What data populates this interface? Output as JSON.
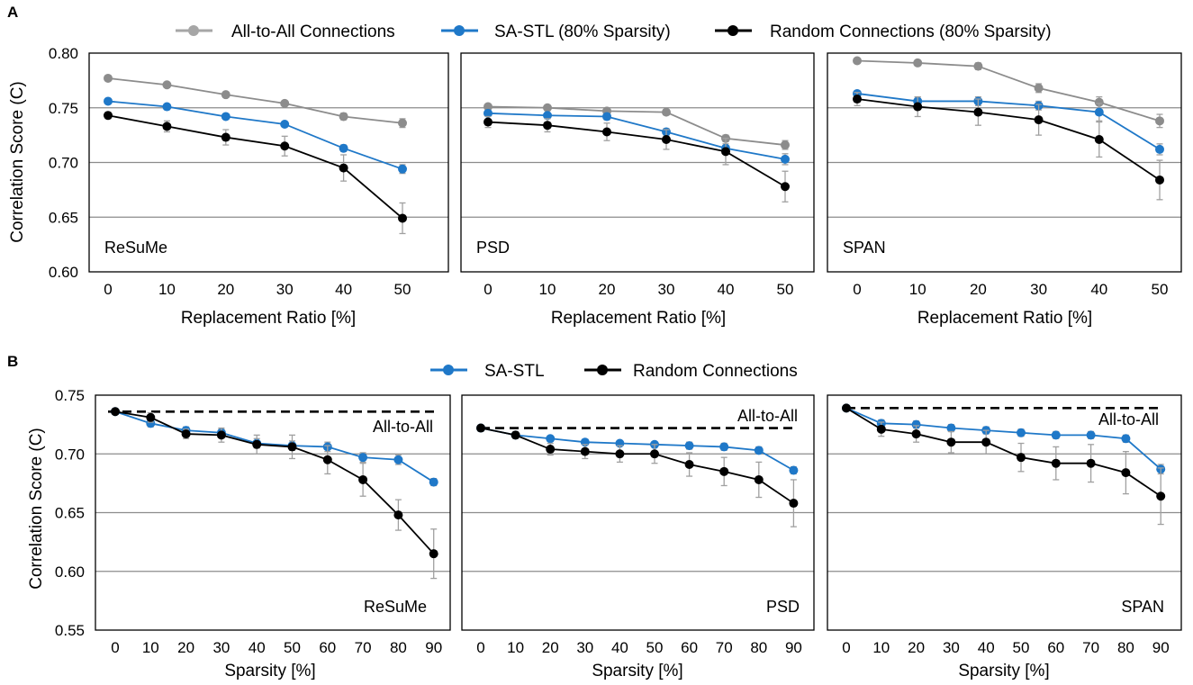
{
  "colors": {
    "all_to_all": "#8c8c8c",
    "all_to_all_legend": "#a6a6a6",
    "sa_stl": "#1f78c8",
    "random": "#000000",
    "grid": "#8c8c8c",
    "errorbar": "#a0a0a0"
  },
  "panel_labels": {
    "a": "A",
    "b": "B"
  },
  "legend_a": [
    "All-to-All Connections",
    "SA-STL (80% Sparsity)",
    "Random Connections (80% Sparsity)"
  ],
  "legend_b": [
    "SA-STL",
    "Random Connections"
  ],
  "chart_data": [
    {
      "type": "line",
      "panel": "A",
      "title": "ReSuMe",
      "xlabel": "Replacement Ratio [%]",
      "ylabel": "Correlation Score (C)",
      "x": [
        0,
        10,
        20,
        30,
        40,
        50
      ],
      "ylim": [
        0.6,
        0.8
      ],
      "yticks": [
        "0.60",
        "0.65",
        "0.70",
        "0.75",
        "0.80"
      ],
      "grid_y": [
        0.65,
        0.7,
        0.75
      ],
      "series": [
        {
          "name": "All-to-All Connections",
          "color_key": "all_to_all",
          "values": [
            0.777,
            0.771,
            0.762,
            0.754,
            0.742,
            0.736
          ],
          "err": [
            0.002,
            0.002,
            0.002,
            0.002,
            0.003,
            0.004
          ]
        },
        {
          "name": "SA-STL (80% Sparsity)",
          "color_key": "sa_stl",
          "values": [
            0.756,
            0.751,
            0.742,
            0.735,
            0.713,
            0.694
          ],
          "err": [
            0.002,
            0.002,
            0.002,
            0.002,
            0.003,
            0.004
          ]
        },
        {
          "name": "Random Connections (80% Sparsity)",
          "color_key": "random",
          "values": [
            0.743,
            0.733,
            0.723,
            0.715,
            0.695,
            0.649
          ],
          "err": [
            0.003,
            0.005,
            0.007,
            0.009,
            0.012,
            0.014
          ]
        }
      ]
    },
    {
      "type": "line",
      "panel": "A",
      "title": "PSD",
      "xlabel": "Replacement Ratio [%]",
      "ylabel": "",
      "x": [
        0,
        10,
        20,
        30,
        40,
        50
      ],
      "ylim": [
        0.6,
        0.8
      ],
      "yticks": [],
      "grid_y": [
        0.65,
        0.7,
        0.75
      ],
      "series": [
        {
          "name": "All-to-All Connections",
          "color_key": "all_to_all",
          "values": [
            0.751,
            0.75,
            0.747,
            0.746,
            0.722,
            0.716
          ],
          "err": [
            0.002,
            0.002,
            0.002,
            0.002,
            0.003,
            0.004
          ]
        },
        {
          "name": "SA-STL (80% Sparsity)",
          "color_key": "sa_stl",
          "values": [
            0.745,
            0.743,
            0.742,
            0.728,
            0.713,
            0.703
          ],
          "err": [
            0.002,
            0.002,
            0.003,
            0.003,
            0.004,
            0.005
          ]
        },
        {
          "name": "Random Connections (80% Sparsity)",
          "color_key": "random",
          "values": [
            0.737,
            0.734,
            0.728,
            0.721,
            0.71,
            0.678
          ],
          "err": [
            0.005,
            0.006,
            0.008,
            0.009,
            0.012,
            0.014
          ]
        }
      ]
    },
    {
      "type": "line",
      "panel": "A",
      "title": "SPAN",
      "xlabel": "Replacement Ratio [%]",
      "ylabel": "",
      "x": [
        0,
        10,
        20,
        30,
        40,
        50
      ],
      "ylim": [
        0.6,
        0.8
      ],
      "yticks": [],
      "grid_y": [
        0.65,
        0.7,
        0.75
      ],
      "series": [
        {
          "name": "All-to-All Connections",
          "color_key": "all_to_all",
          "values": [
            0.793,
            0.791,
            0.788,
            0.768,
            0.755,
            0.738
          ],
          "err": [
            0.002,
            0.002,
            0.003,
            0.004,
            0.005,
            0.006
          ]
        },
        {
          "name": "SA-STL (80% Sparsity)",
          "color_key": "sa_stl",
          "values": [
            0.763,
            0.756,
            0.756,
            0.752,
            0.746,
            0.712
          ],
          "err": [
            0.002,
            0.004,
            0.004,
            0.004,
            0.008,
            0.005
          ]
        },
        {
          "name": "Random Connections (80% Sparsity)",
          "color_key": "random",
          "values": [
            0.758,
            0.751,
            0.746,
            0.739,
            0.721,
            0.684
          ],
          "err": [
            0.006,
            0.009,
            0.012,
            0.014,
            0.016,
            0.018
          ]
        }
      ]
    },
    {
      "type": "line",
      "panel": "B",
      "title": "ReSuMe",
      "xlabel": "Sparsity [%]",
      "ylabel": "Correlation Score (C)",
      "x": [
        0,
        10,
        20,
        30,
        40,
        50,
        60,
        70,
        80,
        90
      ],
      "ylim": [
        0.55,
        0.75
      ],
      "yticks": [
        "0.55",
        "0.60",
        "0.65",
        "0.70",
        "0.75"
      ],
      "grid_y": [
        0.6,
        0.65,
        0.7
      ],
      "reference": {
        "label": "All-to-All",
        "value": 0.736
      },
      "series": [
        {
          "name": "SA-STL",
          "color_key": "sa_stl",
          "values": [
            0.736,
            0.726,
            0.72,
            0.718,
            0.709,
            0.707,
            0.706,
            0.697,
            0.695,
            0.676
          ],
          "err": [
            0.002,
            0.003,
            0.003,
            0.003,
            0.004,
            0.004,
            0.004,
            0.004,
            0.004,
            0.003
          ]
        },
        {
          "name": "Random Connections",
          "color_key": "random",
          "values": [
            0.736,
            0.731,
            0.717,
            0.716,
            0.708,
            0.706,
            0.695,
            0.678,
            0.648,
            0.615
          ],
          "err": [
            0.002,
            0.004,
            0.004,
            0.006,
            0.008,
            0.01,
            0.012,
            0.014,
            0.013,
            0.021
          ]
        }
      ]
    },
    {
      "type": "line",
      "panel": "B",
      "title": "PSD",
      "xlabel": "Sparsity [%]",
      "ylabel": "",
      "x": [
        0,
        10,
        20,
        30,
        40,
        50,
        60,
        70,
        80,
        90
      ],
      "ylim": [
        0.55,
        0.75
      ],
      "yticks": [],
      "grid_y": [
        0.6,
        0.65,
        0.7
      ],
      "reference": {
        "label": "All-to-All",
        "value": 0.722
      },
      "series": [
        {
          "name": "SA-STL",
          "color_key": "sa_stl",
          "values": [
            0.722,
            0.716,
            0.713,
            0.71,
            0.709,
            0.708,
            0.707,
            0.706,
            0.703,
            0.686
          ],
          "err": [
            0.002,
            0.002,
            0.002,
            0.002,
            0.002,
            0.002,
            0.003,
            0.003,
            0.003,
            0.003
          ]
        },
        {
          "name": "Random Connections",
          "color_key": "random",
          "values": [
            0.722,
            0.716,
            0.704,
            0.702,
            0.7,
            0.7,
            0.691,
            0.685,
            0.678,
            0.658
          ],
          "err": [
            0.002,
            0.003,
            0.005,
            0.006,
            0.007,
            0.008,
            0.01,
            0.012,
            0.015,
            0.02
          ]
        }
      ]
    },
    {
      "type": "line",
      "panel": "B",
      "title": "SPAN",
      "xlabel": "Sparsity [%]",
      "ylabel": "",
      "x": [
        0,
        10,
        20,
        30,
        40,
        50,
        60,
        70,
        80,
        90
      ],
      "ylim": [
        0.55,
        0.75
      ],
      "yticks": [],
      "grid_y": [
        0.6,
        0.65,
        0.7
      ],
      "reference": {
        "label": "All-to-All",
        "value": 0.739
      },
      "series": [
        {
          "name": "SA-STL",
          "color_key": "sa_stl",
          "values": [
            0.739,
            0.726,
            0.725,
            0.722,
            0.72,
            0.718,
            0.716,
            0.716,
            0.713,
            0.687
          ],
          "err": [
            0.002,
            0.003,
            0.003,
            0.003,
            0.003,
            0.003,
            0.003,
            0.003,
            0.003,
            0.004
          ]
        },
        {
          "name": "Random Connections",
          "color_key": "random",
          "values": [
            0.739,
            0.721,
            0.717,
            0.71,
            0.71,
            0.697,
            0.692,
            0.692,
            0.684,
            0.664
          ],
          "err": [
            0.002,
            0.006,
            0.007,
            0.009,
            0.01,
            0.012,
            0.014,
            0.016,
            0.018,
            0.024
          ]
        }
      ]
    }
  ]
}
